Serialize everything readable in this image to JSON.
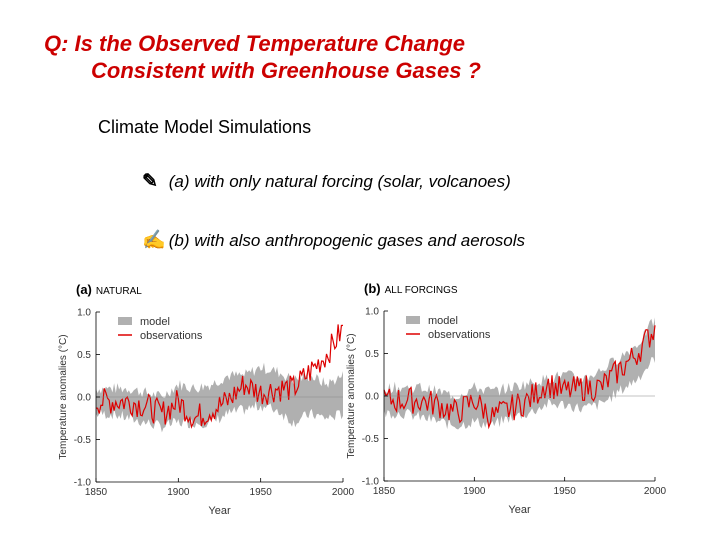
{
  "title_line1": "Q:  Is the Observed Temperature Change",
  "title_line2": "Consistent with Greenhouse Gases ?",
  "subtitle": "Climate Model Simulations",
  "bullets": [
    {
      "icon": "pen-down-icon",
      "text": "(a) with only natural forcing (solar, volcanoes)"
    },
    {
      "icon": "pen-corner-icon",
      "text": "(b) with also anthropogenic gases and aerosols"
    }
  ],
  "colors": {
    "title": "#cc0000",
    "observations": "#dd0000",
    "model": "#b0b0b0"
  },
  "chart_data": [
    {
      "type": "area+line",
      "panel": "(a)",
      "title": "NATURAL",
      "xlabel": "Year",
      "ylabel": "Temperature anomalies (°C)",
      "xlim": [
        1850,
        2000
      ],
      "ylim": [
        -1.0,
        1.0
      ],
      "xticks": [
        1850,
        1900,
        1950,
        2000
      ],
      "yticks": [
        -1.0,
        -0.5,
        0.0,
        0.5,
        1.0
      ],
      "ytick_labels": [
        "-1.0",
        "-0.5",
        "0.0",
        "0.5",
        "1.0"
      ],
      "legend": [
        "model",
        "observations"
      ],
      "x": [
        1860,
        1870,
        1880,
        1890,
        1900,
        1910,
        1920,
        1930,
        1940,
        1950,
        1960,
        1970,
        1980,
        1990,
        2000
      ],
      "observations": [
        -0.05,
        -0.05,
        -0.1,
        -0.2,
        -0.05,
        -0.25,
        -0.15,
        -0.05,
        0.15,
        0.05,
        0.1,
        0.1,
        0.3,
        0.5,
        0.8
      ],
      "model_upper": [
        0.1,
        0.1,
        0.05,
        0.0,
        0.15,
        0.1,
        0.15,
        0.25,
        0.25,
        0.35,
        0.3,
        0.2,
        0.25,
        0.15,
        0.25
      ],
      "model_lower": [
        -0.2,
        -0.25,
        -0.3,
        -0.35,
        -0.3,
        -0.3,
        -0.3,
        -0.2,
        -0.15,
        -0.1,
        -0.15,
        -0.3,
        -0.2,
        -0.25,
        -0.2
      ]
    },
    {
      "type": "area+line",
      "panel": "(b)",
      "title": "ALL FORCINGS",
      "xlabel": "Year",
      "ylabel": "Temperature anomalies (°C)",
      "xlim": [
        1850,
        2000
      ],
      "ylim": [
        -1.0,
        1.0
      ],
      "xticks": [
        1850,
        1900,
        1950,
        2000
      ],
      "yticks": [
        -1.0,
        -0.5,
        0.0,
        0.5,
        1.0
      ],
      "ytick_labels": [
        "-1.0",
        "-0.5",
        "0.0",
        "0.5",
        "1.0"
      ],
      "legend": [
        "model",
        "observations"
      ],
      "x": [
        1860,
        1870,
        1880,
        1890,
        1900,
        1910,
        1920,
        1930,
        1940,
        1950,
        1960,
        1970,
        1980,
        1990,
        2000
      ],
      "observations": [
        -0.05,
        -0.05,
        -0.1,
        -0.2,
        -0.05,
        -0.25,
        -0.15,
        -0.05,
        0.15,
        0.05,
        0.1,
        0.1,
        0.3,
        0.5,
        0.8
      ],
      "model_upper": [
        0.1,
        0.1,
        0.05,
        0.0,
        0.1,
        0.05,
        0.1,
        0.15,
        0.2,
        0.25,
        0.2,
        0.3,
        0.45,
        0.6,
        0.9
      ],
      "model_lower": [
        -0.2,
        -0.25,
        -0.3,
        -0.35,
        -0.3,
        -0.35,
        -0.25,
        -0.2,
        -0.1,
        -0.1,
        -0.15,
        -0.1,
        0.05,
        0.2,
        0.45
      ]
    }
  ]
}
